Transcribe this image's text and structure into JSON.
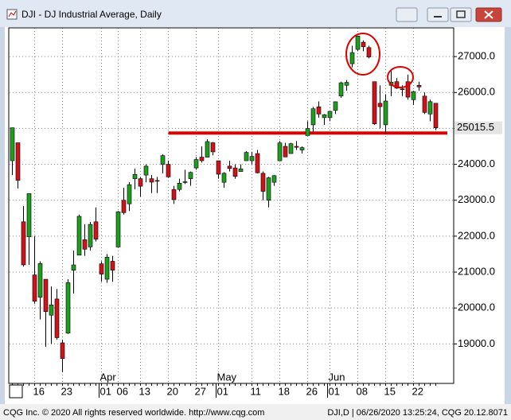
{
  "chart_data": {
    "type": "candlestick",
    "title": "DJI - DJ Industrial Average, Daily",
    "categories": [
      null,
      null,
      null,
      null,
      "16",
      null,
      null,
      null,
      null,
      "23",
      null,
      null,
      null,
      null,
      null,
      null,
      "01",
      null,
      null,
      "06",
      null,
      null,
      null,
      "13",
      null,
      null,
      null,
      null,
      "20",
      null,
      null,
      null,
      null,
      "27",
      null,
      null,
      null,
      "01",
      null,
      null,
      null,
      null,
      null,
      "11",
      null,
      null,
      null,
      null,
      "18",
      null,
      null,
      null,
      null,
      "26",
      null,
      null,
      null,
      "01",
      null,
      null,
      null,
      null,
      "08",
      null,
      null,
      null,
      null,
      "15",
      null,
      null,
      null,
      null,
      "22",
      null,
      null,
      null,
      null
    ],
    "months": [
      {
        "label": "Apr",
        "at": 16
      },
      {
        "label": "May",
        "at": 37
      },
      {
        "label": "Jun",
        "at": 57
      }
    ],
    "series": [
      {
        "up_color": "#1e9e1e",
        "down_color": "#d0121b",
        "open": [
          24100,
          24600,
          22400,
          21980,
          20920,
          20300,
          20800,
          19800,
          20250,
          19030,
          19300,
          21050,
          21470,
          21900,
          21700,
          22400,
          21230,
          20800,
          21300,
          21700,
          23000,
          22900,
          23600,
          23600,
          23700,
          23600,
          23550,
          24000,
          24000,
          23300,
          23300,
          23500,
          23600,
          23900,
          24200,
          24200,
          24600,
          24100,
          23500,
          23950,
          23900,
          23800,
          24100,
          24100,
          24300,
          23750,
          23000,
          23500,
          24100,
          24500,
          24300,
          24500,
          24400,
          24800,
          25100,
          25600,
          25300,
          25300,
          25500,
          25900,
          26200,
          26800,
          27200,
          27400,
          27250,
          26300,
          25700,
          25100,
          26200,
          26300,
          26100,
          26300,
          25800,
          26200,
          25900,
          25400,
          25700
        ],
        "high": [
          25020,
          24600,
          22840,
          23190,
          22000,
          21300,
          20800,
          20600,
          20530,
          19120,
          20800,
          21600,
          22600,
          22330,
          22400,
          22800,
          21300,
          21500,
          21450,
          22700,
          23350,
          23500,
          23880,
          23650,
          24000,
          23700,
          23650,
          24280,
          24100,
          23400,
          23600,
          23850,
          23800,
          24200,
          24500,
          24700,
          24620,
          24100,
          23780,
          24100,
          24000,
          24000,
          24370,
          24350,
          24400,
          23800,
          23650,
          23700,
          24650,
          24600,
          24600,
          24650,
          24500,
          25200,
          25600,
          25750,
          25400,
          25500,
          25750,
          26300,
          26350,
          27300,
          27580,
          27450,
          27300,
          26300,
          26200,
          25950,
          26600,
          26400,
          26200,
          26500,
          26050,
          26300,
          26000,
          25800,
          25700
        ],
        "low": [
          23700,
          23330,
          21150,
          21200,
          20120,
          19680,
          18920,
          19000,
          19120,
          18210,
          19280,
          20400,
          21470,
          21450,
          21600,
          21850,
          20730,
          20700,
          20730,
          21690,
          22600,
          22700,
          23300,
          23100,
          23500,
          23200,
          23200,
          23750,
          23630,
          22900,
          23250,
          23450,
          23400,
          23850,
          24050,
          24200,
          24250,
          23600,
          23350,
          23800,
          23600,
          23800,
          24100,
          24000,
          23750,
          23000,
          22800,
          23400,
          24100,
          24200,
          24300,
          24400,
          24300,
          24800,
          24900,
          25300,
          25100,
          25200,
          25400,
          25850,
          26050,
          26700,
          27150,
          27150,
          26950,
          25100,
          25000,
          24850,
          25900,
          26100,
          25900,
          25800,
          25650,
          26050,
          25400,
          25200,
          24950
        ],
        "close": [
          25018,
          23553,
          21200,
          23185,
          20188,
          21237,
          19899,
          20087,
          19174,
          18592,
          20704,
          21200,
          22552,
          21636,
          22327,
          21917,
          20943,
          21413,
          21052,
          22680,
          22654,
          23434,
          23719,
          23390,
          23949,
          23504,
          23538,
          24242,
          23650,
          23019,
          23475,
          23516,
          23775,
          24134,
          24101,
          24633,
          24346,
          23724,
          23750,
          23883,
          23664,
          23875,
          24331,
          24221,
          23764,
          23248,
          23625,
          23685,
          24597,
          24206,
          24575,
          24474,
          24465,
          24995,
          25548,
          25400,
          25383,
          25475,
          25742,
          26270,
          26281,
          27111,
          27572,
          27272,
          26990,
          25128,
          25606,
          25763,
          26290,
          26120,
          26080,
          25871,
          26025,
          26156,
          25445,
          25745,
          25015.5
        ]
      }
    ],
    "last_price": 25015.5,
    "support_line": {
      "value": 24870,
      "from": 28,
      "color": "#e00000"
    },
    "ylim": [
      17900,
      27800
    ],
    "yticks": [
      {
        "value": 19000,
        "label": "19000.0"
      },
      {
        "value": 20000,
        "label": "20000.0"
      },
      {
        "value": 21000,
        "label": "21000.0"
      },
      {
        "value": 22000,
        "label": "22000.0"
      },
      {
        "value": 23000,
        "label": "23000.0"
      },
      {
        "value": 24000,
        "label": "24000.0"
      },
      {
        "value": 25000,
        "label": "25000.0"
      },
      {
        "value": 26000,
        "label": "26000.0"
      },
      {
        "value": 27000,
        "label": "27000.0"
      }
    ],
    "grid": true
  },
  "footer": {
    "left": "CQG Inc. © 2020 All rights reserved worldwide. http://www.cqg.com",
    "right": "DJI,D | 06/26/2020 13:25:24, CQG 20.12.8071"
  }
}
